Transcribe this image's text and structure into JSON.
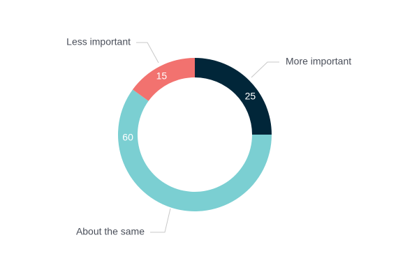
{
  "chart_data": {
    "type": "pie",
    "variant": "donut",
    "title": "",
    "categories": [
      "More important",
      "About the same",
      "Less important"
    ],
    "values": [
      25,
      60,
      15
    ],
    "colors": [
      "#012639",
      "#7bcfd2",
      "#f2726f"
    ],
    "data_labels": [
      "25",
      "60",
      "15"
    ],
    "legend": "none",
    "grid": false
  }
}
